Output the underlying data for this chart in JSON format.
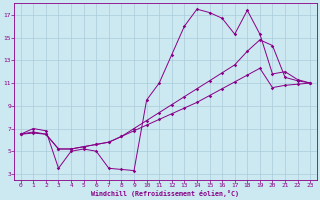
{
  "xlabel": "Windchill (Refroidissement éolien,°C)",
  "bg_color": "#cce8f0",
  "grid_color": "#aaccdd",
  "line_color": "#880088",
  "xlim": [
    -0.5,
    23.5
  ],
  "ylim": [
    2.5,
    18.0
  ],
  "xticks": [
    0,
    1,
    2,
    3,
    4,
    5,
    6,
    7,
    8,
    9,
    10,
    11,
    12,
    13,
    14,
    15,
    16,
    17,
    18,
    19,
    20,
    21,
    22,
    23
  ],
  "yticks": [
    3,
    5,
    7,
    9,
    11,
    13,
    15,
    17
  ],
  "line1_x": [
    0,
    1,
    2,
    3,
    4,
    5,
    6,
    7,
    8,
    9,
    10,
    11,
    12,
    13,
    14,
    15,
    16,
    17,
    18,
    19,
    20,
    21,
    22,
    23
  ],
  "line1_y": [
    6.5,
    7.0,
    6.8,
    3.5,
    5.0,
    5.2,
    5.0,
    3.5,
    3.4,
    3.3,
    9.5,
    11.0,
    13.5,
    16.0,
    17.5,
    17.2,
    16.7,
    15.3,
    17.4,
    15.3,
    11.8,
    12.0,
    11.3,
    11.0
  ],
  "line2_x": [
    0,
    1,
    2,
    3,
    4,
    5,
    6,
    7,
    8,
    9,
    10,
    11,
    12,
    13,
    14,
    15,
    16,
    17,
    18,
    19,
    20,
    21,
    22,
    23
  ],
  "line2_y": [
    6.5,
    6.7,
    6.5,
    5.2,
    5.2,
    5.4,
    5.6,
    5.8,
    6.3,
    7.0,
    7.7,
    8.4,
    9.1,
    9.8,
    10.5,
    11.2,
    11.9,
    12.6,
    13.8,
    14.8,
    14.3,
    11.5,
    11.2,
    11.0
  ],
  "line3_x": [
    0,
    1,
    2,
    3,
    4,
    5,
    6,
    7,
    8,
    9,
    10,
    11,
    12,
    13,
    14,
    15,
    16,
    17,
    18,
    19,
    20,
    21,
    22,
    23
  ],
  "line3_y": [
    6.5,
    6.6,
    6.5,
    5.2,
    5.2,
    5.4,
    5.6,
    5.8,
    6.3,
    6.8,
    7.3,
    7.8,
    8.3,
    8.8,
    9.3,
    9.9,
    10.5,
    11.1,
    11.7,
    12.3,
    10.6,
    10.8,
    10.9,
    11.0
  ]
}
